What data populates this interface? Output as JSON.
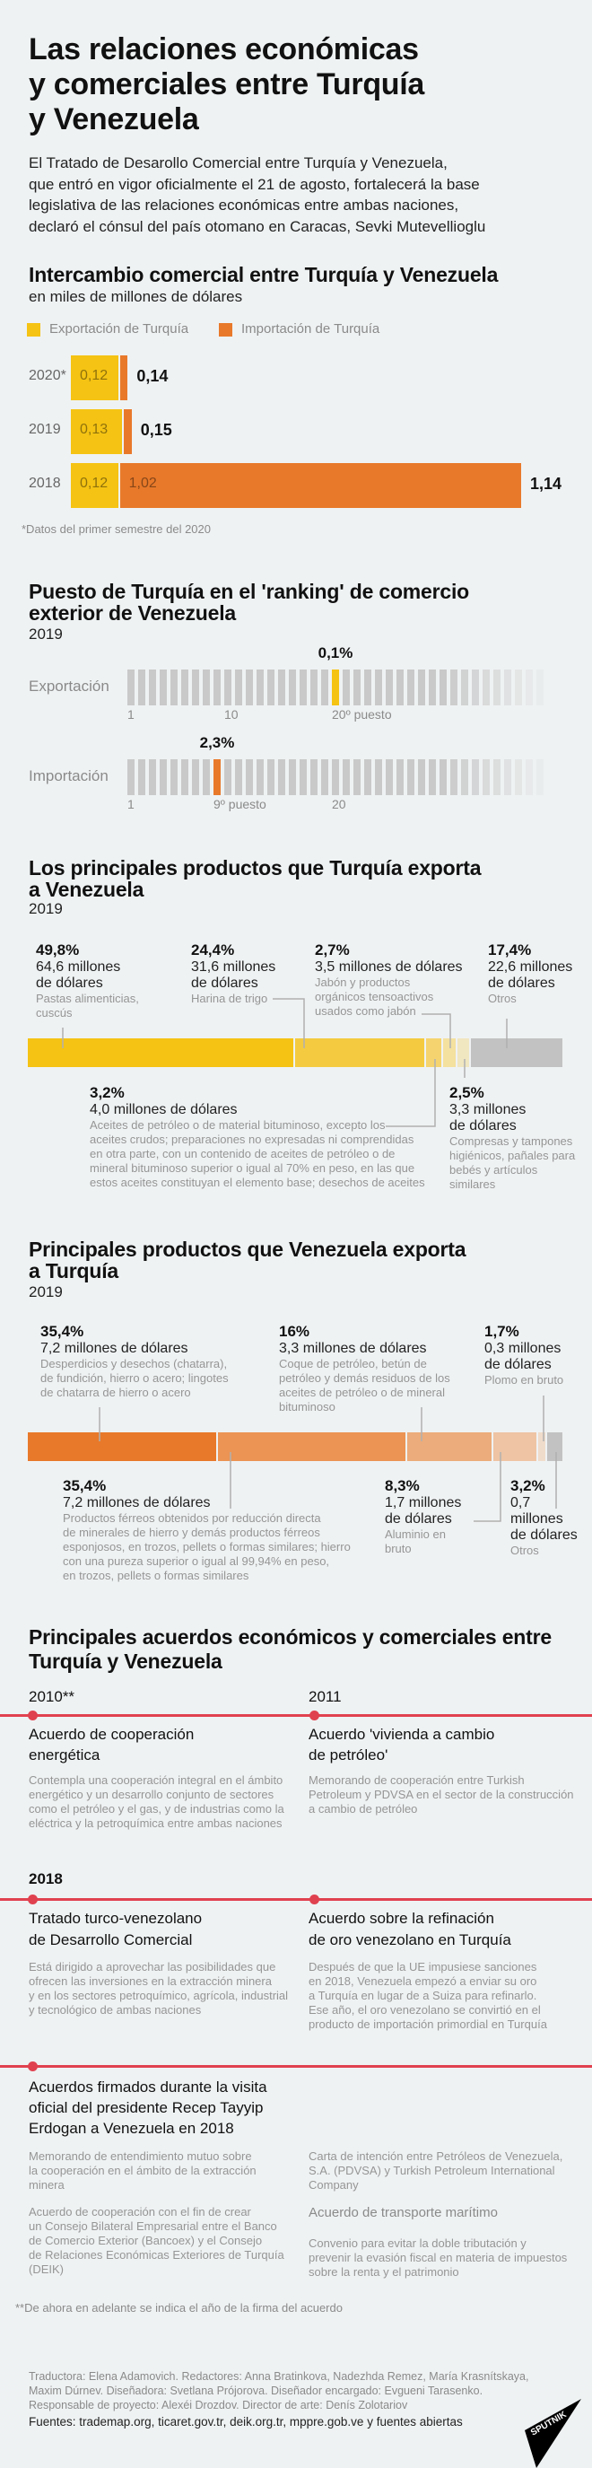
{
  "header": {
    "title_lines": [
      "Las relaciones económicas",
      "y comerciales entre Turquía",
      "y Venezuela"
    ],
    "intro_lines": [
      "El Tratado de Desarollo Comercial entre Turquía y Venezuela,",
      "que entró en vigor oficialmente el 21 de agosto, fortalecerá la base",
      "legislativa de las relaciones económicas entre ambas naciones,",
      "declaró el cónsul del país otomano en Caracas, Sevki Mutevellioglu"
    ]
  },
  "trade": {
    "title": "Intercambio comercial entre Turquía y Venezuela",
    "subtitle": "en miles de millones de dólares",
    "footnote": "*Datos del primer semestre del 2020"
  },
  "chart_data": {
    "type": "bar",
    "orientation": "horizontal",
    "stacked": true,
    "title": "Intercambio comercial entre Turquía y Venezuela",
    "subtitle": "en miles de millones de dólares",
    "categories": [
      "2020*",
      "2019",
      "2018"
    ],
    "series": [
      {
        "name": "Exportación de Turquía",
        "color": "#f5c313",
        "values": [
          0.12,
          0.13,
          0.12
        ],
        "labels": [
          "0,12",
          "0,13",
          "0,12"
        ]
      },
      {
        "name": "Importación de Turquía",
        "color": "#e8792a",
        "values": [
          0.02,
          0.02,
          1.02
        ],
        "labels": [
          "",
          "",
          "1,02"
        ]
      }
    ],
    "totals": [
      "0,14",
      "0,15",
      "1,14"
    ],
    "legend": "top-left",
    "grid": false
  },
  "ranking": {
    "title_lines": [
      "Puesto de Turquía en el 'ranking' de comercio",
      "exterior de Venezuela"
    ],
    "year": "2019",
    "export": {
      "label": "Exportación",
      "share": "0,1%",
      "rank": 20,
      "color": "#f5c313",
      "ticks": [
        {
          "rank": 1,
          "text": "1"
        },
        {
          "rank": 10,
          "text": "10"
        },
        {
          "rank": 20,
          "text": "20º puesto"
        }
      ]
    },
    "import": {
      "label": "Importación",
      "share": "2,3%",
      "rank": 9,
      "color": "#e8792a",
      "ticks": [
        {
          "rank": 1,
          "text": "1"
        },
        {
          "rank": 9,
          "text": "9º puesto"
        },
        {
          "rank": 20,
          "text": "20"
        }
      ]
    }
  },
  "tr_exports": {
    "title_lines": [
      "Los principales productos que Turquía exporta",
      "a Venezuela"
    ],
    "year": "2019",
    "segments": [
      {
        "pct": 49.8,
        "pct_label": "49,8%",
        "value_lines": [
          "64,6 millones",
          "de dólares"
        ],
        "desc_lines": [
          "Pastas alimenticias,",
          "cuscús"
        ],
        "color": "#f5c313"
      },
      {
        "pct": 24.4,
        "pct_label": "24,4%",
        "value_lines": [
          "31,6 millones",
          "de dólares"
        ],
        "desc_lines": [
          "Harina de trigo"
        ],
        "color": "#f4cb40"
      },
      {
        "pct": 3.2,
        "pct_label": "3,2%",
        "value_lines": [
          "4,0 millones de dólares"
        ],
        "desc_lines": [
          "Aceites de petróleo o de material bituminoso, excepto los",
          "aceites crudos; preparaciones no expresadas ni comprendidas",
          "en otra parte, con un contenido de aceites de petróleo o de",
          "mineral bituminoso superior o igual al 70% en peso, en las que",
          "estos aceites constituyan el elemento base; desechos de aceites"
        ],
        "color": "#f5d46f"
      },
      {
        "pct": 2.7,
        "pct_label": "2,7%",
        "value_lines": [
          "3,5 millones de dólares"
        ],
        "desc_lines": [
          "Jabón y productos",
          "orgánicos tensoactivos",
          "usados como jabón"
        ],
        "color": "#f4e19f"
      },
      {
        "pct": 2.5,
        "pct_label": "2,5%",
        "value_lines": [
          "3,3 millones",
          "de dólares"
        ],
        "desc_lines": [
          "Compresas y tampones",
          "higiénicos, pañales para",
          "bebés y artículos",
          "similares"
        ],
        "color": "#f0e6c0"
      },
      {
        "pct": 17.4,
        "pct_label": "17,4%",
        "value_lines": [
          "22,6 millones",
          "de dólares"
        ],
        "desc_lines": [
          "Otros"
        ],
        "color": "#c2c2c2"
      }
    ]
  },
  "ve_exports": {
    "title_lines": [
      "Principales productos que Venezuela exporta",
      "a Turquía"
    ],
    "year": "2019",
    "segments": [
      {
        "pct": 35.4,
        "pct_label": "35,4%",
        "value_lines": [
          "7,2 millones de dólares"
        ],
        "desc_lines": [
          "Desperdicios y desechos (chatarra),",
          "de fundición, hierro o acero; lingotes",
          "de chatarra de hierro o acero"
        ],
        "color": "#e8792a"
      },
      {
        "pct": 35.4,
        "pct_label": "35,4%",
        "value_lines": [
          "7,2 millones de dólares"
        ],
        "desc_lines": [
          "Productos férreos obtenidos por reducción directa",
          "de minerales de hierro y demás productos férreos",
          "esponjosos, en trozos, pellets o formas similares; hierro",
          "con una pureza superior o igual al 99,94% en peso,",
          "en trozos, pellets o formas similares"
        ],
        "color": "#eb9454"
      },
      {
        "pct": 16,
        "pct_label": "16%",
        "value_lines": [
          "3,3 millones de dólares"
        ],
        "desc_lines": [
          "Coque de petróleo, betún de",
          "petróleo y demás residuos de los",
          "aceites de petróleo o de mineral",
          "bituminoso"
        ],
        "color": "#ecac7b"
      },
      {
        "pct": 8.3,
        "pct_label": "8,3%",
        "value_lines": [
          "1,7 millones",
          "de dólares"
        ],
        "desc_lines": [
          "Aluminio en",
          "bruto"
        ],
        "color": "#eec4a4"
      },
      {
        "pct": 1.7,
        "pct_label": "1,7%",
        "value_lines": [
          "0,3 millones",
          "de dólares"
        ],
        "desc_lines": [
          "Plomo en bruto"
        ],
        "color": "#f0dccb"
      },
      {
        "pct": 3.2,
        "pct_label": "3,2%",
        "value_lines": [
          "0,7",
          "millones",
          "de dólares"
        ],
        "desc_lines": [
          "Otros"
        ],
        "color": "#c2c2c2"
      }
    ]
  },
  "agreements": {
    "title_lines": [
      "Principales acuerdos económicos y comerciales entre",
      "Turquía y Venezuela"
    ],
    "accent": "#e0414f",
    "items": [
      {
        "year": "2010**",
        "title_lines": [
          "Acuerdo de cooperación",
          "energética"
        ],
        "desc_lines": [
          "Contempla una cooperación integral en el ámbito",
          "energético y un desarrollo conjunto de sectores",
          "como el petróleo y el gas, y de industrias como la",
          "eléctrica y la petroquímica entre ambas naciones"
        ]
      },
      {
        "year": "2011",
        "title_lines": [
          "Acuerdo 'vivienda a cambio",
          "de petróleo'"
        ],
        "desc_lines": [
          "Memorando de cooperación entre Turkish",
          "Petroleum y PDVSA en el sector de la construcción",
          "a cambio de petróleo"
        ]
      },
      {
        "year": "2018",
        "title_lines": [
          "Tratado turco-venezolano",
          "de Desarrollo Comercial"
        ],
        "desc_lines": [
          "Está dirigido a aprovechar las posibilidades que",
          "ofrecen las inversiones en la extracción minera",
          "y en los sectores petroquímico, agrícola, industrial",
          "y tecnológico de ambas naciones"
        ]
      },
      {
        "year": "",
        "title_lines": [
          "Acuerdo sobre la refinación",
          "de oro venezolano en Turquía"
        ],
        "desc_lines": [
          "Después de que la UE impusiese sanciones",
          "en 2018, Venezuela empezó a enviar su oro",
          "a Turquía en lugar de a Suiza para refinarlo.",
          "Ese año, el oro venezolano se convirtió en el",
          "producto de importación primordial en Turquía"
        ]
      }
    ],
    "visit": {
      "title_lines": [
        "Acuerdos firmados durante la visita",
        "oficial del presidente Recep Tayyip",
        "Erdogan a Venezuela en 2018"
      ],
      "left": [
        [
          "Memorando de entendimiento mutuo sobre",
          "la cooperación en el ámbito de la extracción",
          "minera"
        ],
        [
          "Acuerdo de cooperación con el fin de crear",
          "un Consejo Bilateral Empresarial entre el Banco",
          "de Comercio Exterior (Bancoex) y el Consejo",
          "de Relaciones Económicas Exteriores de Turquía",
          "(DEIK)"
        ]
      ],
      "right": [
        [
          "Carta de intención entre Petróleos de Venezuela,",
          "S.A. (PDVSA) y Turkish Petroleum International",
          "Company"
        ],
        [
          "Acuerdo de transporte marítimo"
        ],
        [
          "Convenio para evitar la doble tributación y",
          "prevenir la evasión fiscal en materia de impuestos",
          "sobre la renta y el patrimonio"
        ]
      ]
    },
    "footnote": "**De ahora en adelante se indica el año de la firma del acuerdo"
  },
  "footer": {
    "credits_lines": [
      "Traductora: Elena Adamovich. Redactores: Anna Bratinkova, Nadezhda Remez, María Krasnítskaya,",
      "Maxim Dúrnev. Diseñadora: Svetlana Prójorova. Diseñador encargado: Evgueni Tarasenko.",
      "Responsable de proyecto: Alexéi Drozdov. Director de arte: Denís Zolotariov"
    ],
    "sources": "Fuentes: trademap.org, ticaret.gov.tr, deik.org.tr, mppre.gob.ve y fuentes abiertas",
    "logo": "SPUTNIK"
  }
}
